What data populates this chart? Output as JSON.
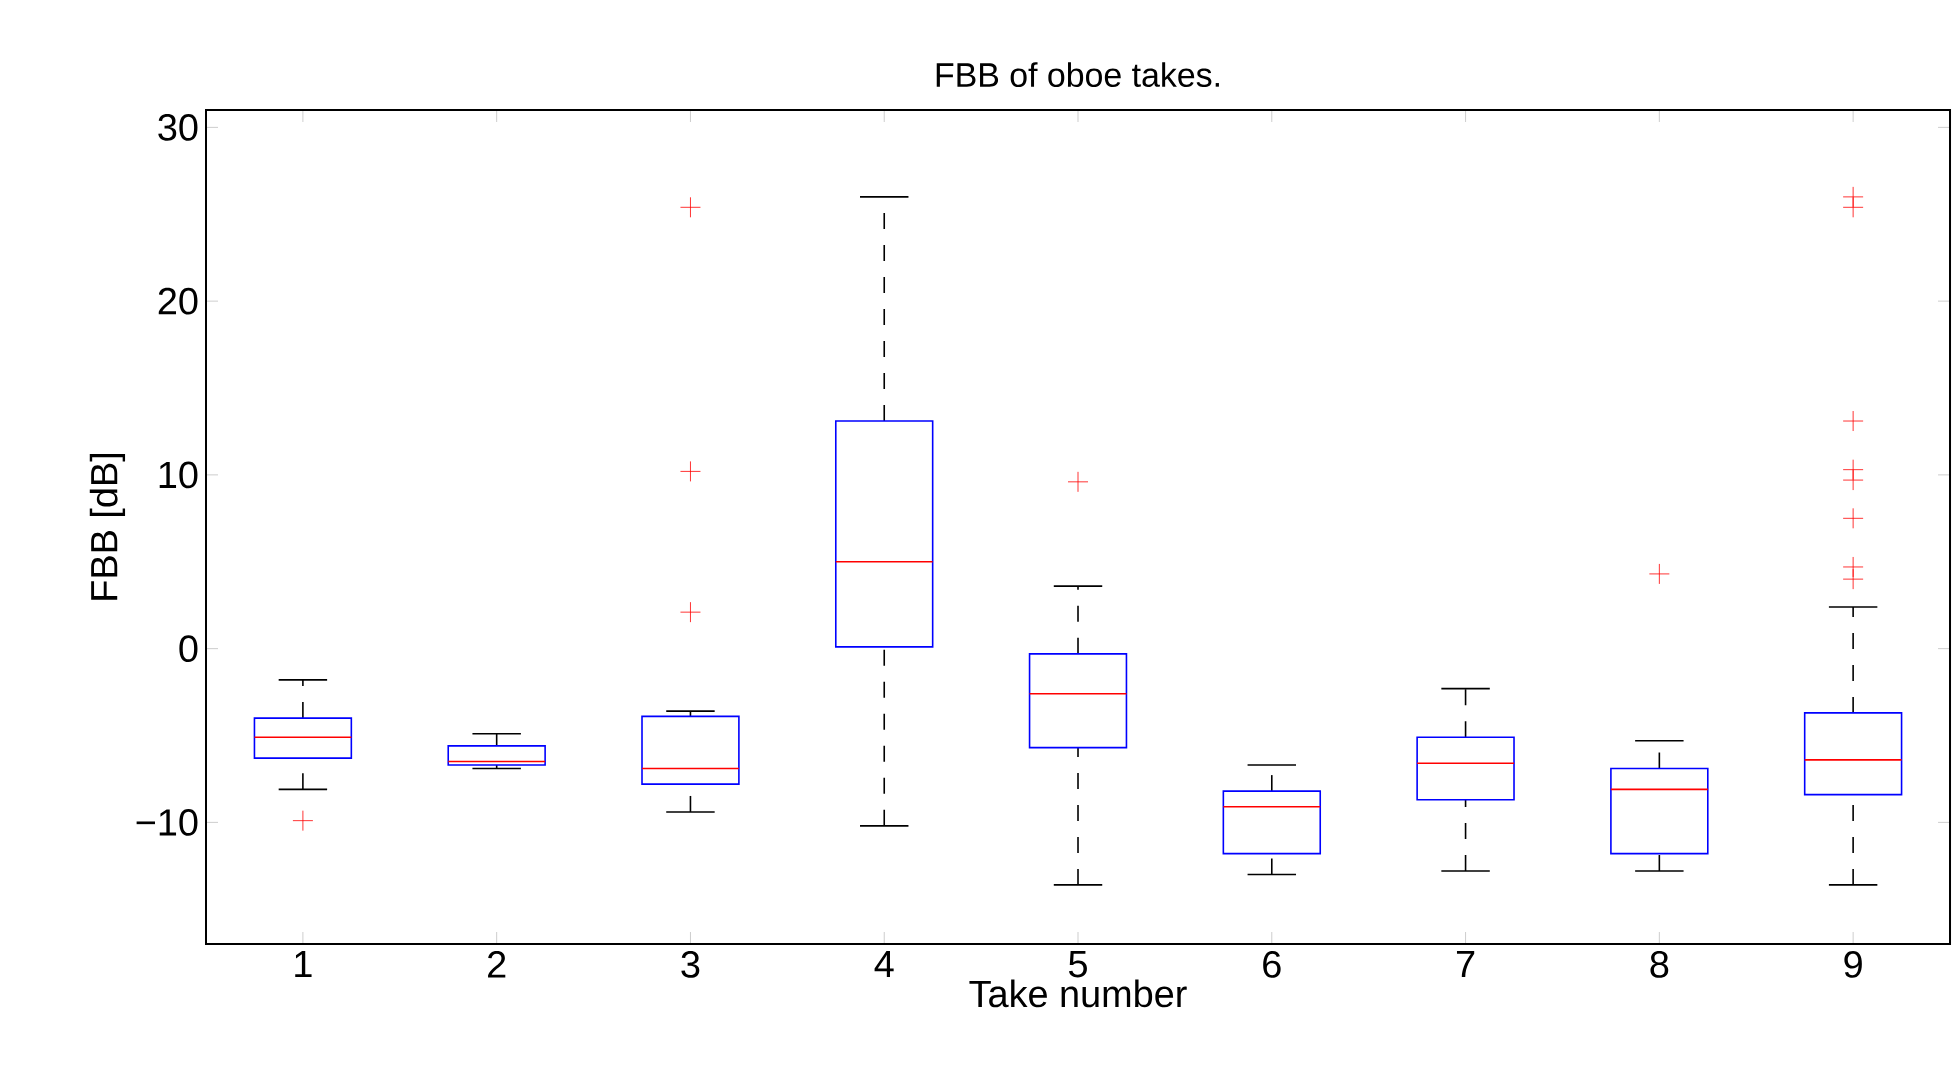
{
  "chart_data": {
    "type": "box",
    "title": "FBB of oboe takes.",
    "xlabel": "Take number",
    "ylabel": "FBB [dB]",
    "categories": [
      "1",
      "2",
      "3",
      "4",
      "5",
      "6",
      "7",
      "8",
      "9"
    ],
    "color": "#0000ff",
    "ylim": [
      -17,
      31
    ],
    "yticks": [
      {
        "value": -10,
        "label": "−10"
      },
      0,
      10,
      20,
      30
    ],
    "boxes": [
      {
        "low": -8.1,
        "q1": -6.3,
        "median": -5.1,
        "q3": -4.0,
        "high": -1.8,
        "outliers": [
          -9.9
        ]
      },
      {
        "low": -6.9,
        "q1": -6.7,
        "median": -6.5,
        "q3": -5.6,
        "high": -4.9
      },
      {
        "low": -9.4,
        "q1": -7.8,
        "median": -6.9,
        "q3": -3.9,
        "high": -3.6,
        "outliers": [
          25.4,
          10.2,
          2.1
        ]
      },
      {
        "low": -10.2,
        "q1": 0.1,
        "median": 5.0,
        "q3": 13.1,
        "high": 26.0
      },
      {
        "low": -13.6,
        "q1": -5.7,
        "median": -2.6,
        "q3": -0.3,
        "high": 3.6,
        "outliers": [
          9.6
        ]
      },
      {
        "low": -13.0,
        "q1": -11.8,
        "median": -9.1,
        "q3": -8.2,
        "high": -6.7
      },
      {
        "low": -12.8,
        "q1": -8.7,
        "median": -6.6,
        "q3": -5.1,
        "high": -2.3
      },
      {
        "low": -12.8,
        "q1": -11.8,
        "median": -8.1,
        "q3": -6.9,
        "high": -5.3,
        "outliers": [
          4.3
        ]
      },
      {
        "low": -13.6,
        "q1": -8.4,
        "median": -6.4,
        "q3": -3.7,
        "high": 2.4,
        "outliers": [
          26.0,
          25.4,
          13.1,
          10.3,
          9.7,
          7.5,
          4.7,
          4.0
        ]
      }
    ]
  }
}
